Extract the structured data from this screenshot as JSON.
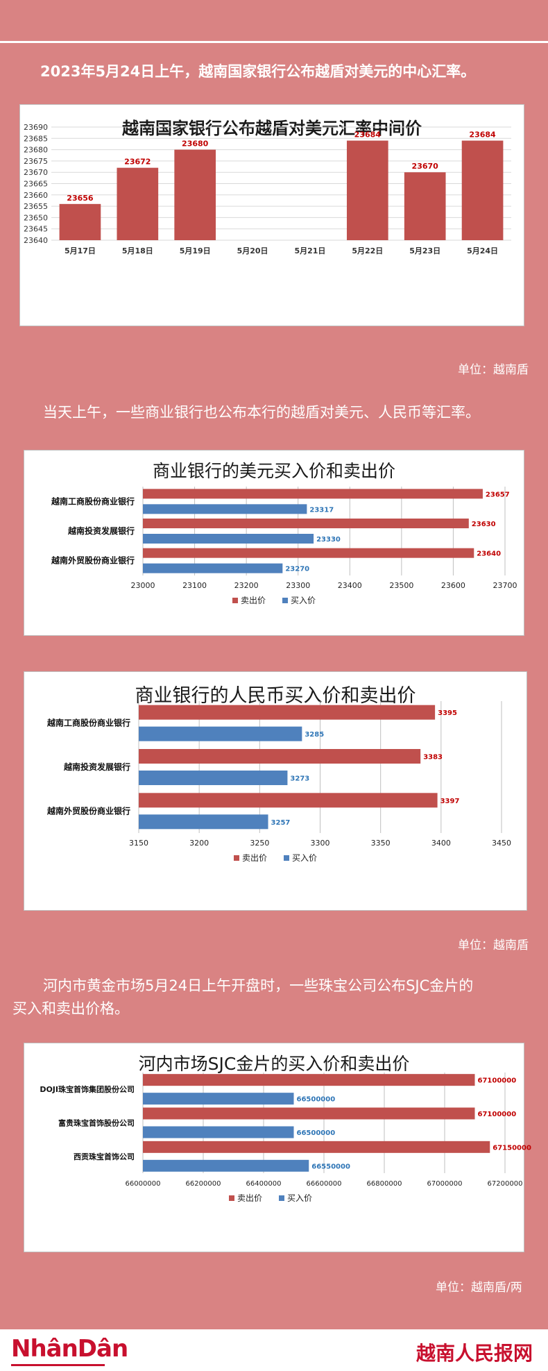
{
  "texts": {
    "intro": "2023年5月24日上午，越南国家银行公布越盾对美元的中心汇率。",
    "para2": "当天上午，一些商业银行也公布本行的越盾对美元、人民币等汇率。",
    "para3_l1": "河内市黄金市场5月24日上午开盘时，一些珠宝公司公布SJC金片的",
    "para3_l2": "买入和卖出价格。",
    "unit1": "单位：越南盾",
    "unit2": "单位：越南盾",
    "unit3": "单位：越南盾/两"
  },
  "footer": {
    "logo_left": "NhânDân",
    "logo_right": "越南人民报网"
  },
  "colors": {
    "sell": "#c0504d",
    "buy": "#4f81bd",
    "sell_label": "#c00000",
    "buy_label": "#2e75b6",
    "background": "#d98383"
  },
  "chart_data": [
    {
      "type": "bar",
      "title": "越南国家银行公布越盾对美元汇率中间价",
      "categories": [
        "5月17日",
        "5月18日",
        "5月19日",
        "5月20日",
        "5月21日",
        "5月22日",
        "5月23日",
        "5月24日"
      ],
      "values": [
        23656,
        23672,
        23680,
        null,
        null,
        23684,
        23670,
        23684
      ],
      "value_labels": [
        "23656",
        "23672",
        "23680",
        "",
        "",
        "23684",
        "23670",
        "23684"
      ],
      "ylim": [
        23640,
        23690
      ],
      "yticks": [
        "23640",
        "23645",
        "23650",
        "23655",
        "23660",
        "23665",
        "23670",
        "23675",
        "23680",
        "23685",
        "23690"
      ],
      "grid": true
    },
    {
      "type": "bar",
      "orientation": "horizontal",
      "title": "商业银行的美元买入价和卖出价",
      "categories": [
        "越南工商股份商业银行",
        "越南投资发展银行",
        "越南外贸股份商业银行"
      ],
      "series": [
        {
          "name": "卖出价",
          "values": [
            23657,
            23630,
            23640
          ],
          "labels": [
            "23657",
            "23630",
            "23640"
          ]
        },
        {
          "name": "买入价",
          "values": [
            23317,
            23330,
            23270
          ],
          "labels": [
            "23317",
            "23330",
            "23270"
          ]
        }
      ],
      "xlim": [
        23000,
        23700
      ],
      "xticks": [
        "23000",
        "23100",
        "23200",
        "23300",
        "23400",
        "23500",
        "23600",
        "23700"
      ],
      "legend": "bottom",
      "grid": true
    },
    {
      "type": "bar",
      "orientation": "horizontal",
      "title": "商业银行的人民币买入价和卖出价",
      "categories": [
        "越南工商股份商业银行",
        "越南投资发展银行",
        "越南外贸股份商业银行"
      ],
      "series": [
        {
          "name": "卖出价",
          "values": [
            3395,
            3383,
            3397
          ],
          "labels": [
            "3395",
            "3383",
            "3397"
          ]
        },
        {
          "name": "买入价",
          "values": [
            3285,
            3273,
            3257
          ],
          "labels": [
            "3285",
            "3273",
            "3257"
          ]
        }
      ],
      "xlim": [
        3150,
        3450
      ],
      "xticks": [
        "3150",
        "3200",
        "3250",
        "3300",
        "3350",
        "3400",
        "3450"
      ],
      "legend": "bottom",
      "grid": true
    },
    {
      "type": "bar",
      "orientation": "horizontal",
      "title": "河内市场SJC金片的买入价和卖出价",
      "categories": [
        "DOJI珠宝首饰集团股份公司",
        "富贵珠宝首饰股份公司",
        "西贡珠宝首饰公司"
      ],
      "series": [
        {
          "name": "卖出价",
          "values": [
            67100000,
            67100000,
            67150000
          ],
          "labels": [
            "67100000",
            "67100000",
            "67150000"
          ]
        },
        {
          "name": "买入价",
          "values": [
            66500000,
            66500000,
            66550000
          ],
          "labels": [
            "66500000",
            "66500000",
            "66550000"
          ]
        }
      ],
      "xlim": [
        66000000,
        67200000
      ],
      "xticks": [
        "66000000",
        "66200000",
        "66400000",
        "66600000",
        "66800000",
        "67000000",
        "67200000"
      ],
      "legend": "bottom",
      "grid": true
    }
  ]
}
